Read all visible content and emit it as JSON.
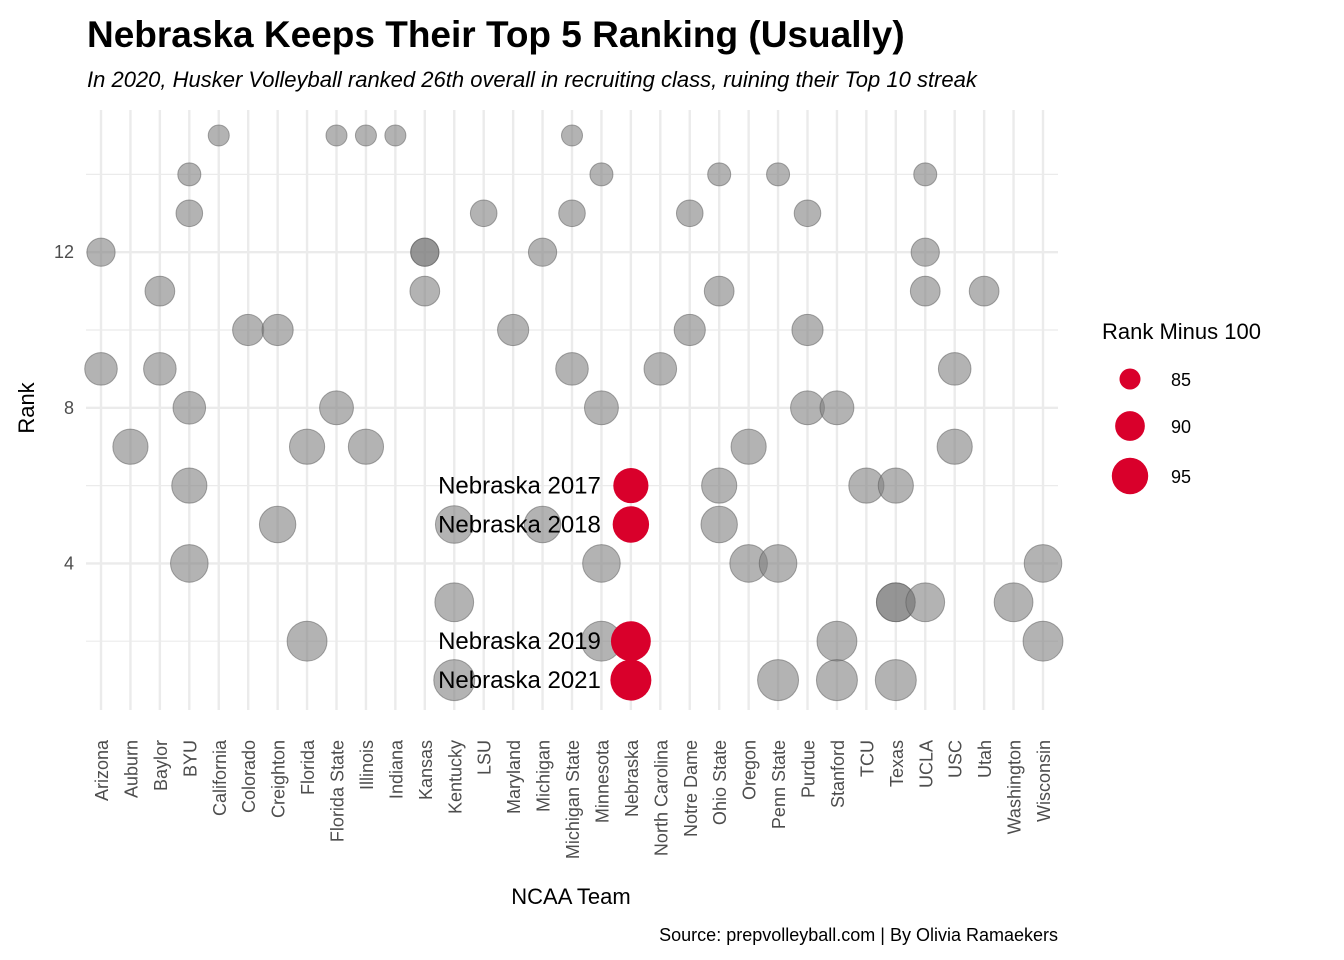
{
  "title": "Nebraska Keeps Their Top 5 Ranking (Usually)",
  "subtitle": "In 2020, Husker Volleyball ranked 26th overall in recruiting class, ruining their Top 10 streak",
  "caption": "Source: prepvolleyball.com | By Olivia Ramaekers",
  "colors": {
    "highlight": "#d9002b",
    "points": "#808080",
    "grid": "#ebebeb"
  },
  "chart_data": {
    "type": "scatter",
    "xlabel": "NCAA Team",
    "ylabel": "Rank",
    "categories": [
      "Arizona",
      "Auburn",
      "Baylor",
      "BYU",
      "California",
      "Colorado",
      "Creighton",
      "Florida",
      "Florida State",
      "Illinois",
      "Indiana",
      "Kansas",
      "Kentucky",
      "LSU",
      "Maryland",
      "Michigan",
      "Michigan State",
      "Minnesota",
      "Nebraska",
      "North Carolina",
      "Notre Dame",
      "Ohio State",
      "Oregon",
      "Penn State",
      "Purdue",
      "Stanford",
      "TCU",
      "Texas",
      "UCLA",
      "USC",
      "Utah",
      "Washington",
      "Wisconsin"
    ],
    "ylim": [
      0.4,
      15.6
    ],
    "y_ticks": [
      4,
      8,
      12
    ],
    "grid": true,
    "size_variable": "Rank Minus 100",
    "legend": {
      "title": "Rank Minus 100",
      "placement": "right",
      "sizes": [
        85,
        90,
        95
      ]
    },
    "points": [
      {
        "x": "Arizona",
        "y": 12,
        "size": 89
      },
      {
        "x": "Arizona",
        "y": 9,
        "size": 92
      },
      {
        "x": "Auburn",
        "y": 7,
        "size": 94
      },
      {
        "x": "Baylor",
        "y": 11,
        "size": 90
      },
      {
        "x": "Baylor",
        "y": 9,
        "size": 92
      },
      {
        "x": "BYU",
        "y": 14,
        "size": 86
      },
      {
        "x": "BYU",
        "y": 13,
        "size": 88
      },
      {
        "x": "BYU",
        "y": 8,
        "size": 92
      },
      {
        "x": "BYU",
        "y": 6,
        "size": 94
      },
      {
        "x": "BYU",
        "y": 4,
        "size": 96
      },
      {
        "x": "California",
        "y": 15,
        "size": 85
      },
      {
        "x": "Colorado",
        "y": 10,
        "size": 91
      },
      {
        "x": "Creighton",
        "y": 10,
        "size": 91
      },
      {
        "x": "Creighton",
        "y": 5,
        "size": 95
      },
      {
        "x": "Florida",
        "y": 7,
        "size": 94
      },
      {
        "x": "Florida",
        "y": 2,
        "size": 98
      },
      {
        "x": "Florida State",
        "y": 15,
        "size": 85
      },
      {
        "x": "Florida State",
        "y": 8,
        "size": 93
      },
      {
        "x": "Illinois",
        "y": 15,
        "size": 85
      },
      {
        "x": "Illinois",
        "y": 7,
        "size": 94
      },
      {
        "x": "Indiana",
        "y": 15,
        "size": 85
      },
      {
        "x": "Kansas",
        "y": 12,
        "size": 89
      },
      {
        "x": "Kansas",
        "y": 12,
        "size": 89
      },
      {
        "x": "Kansas",
        "y": 11,
        "size": 90
      },
      {
        "x": "Kentucky",
        "y": 5,
        "size": 96
      },
      {
        "x": "Kentucky",
        "y": 3,
        "size": 97
      },
      {
        "x": "Kentucky",
        "y": 1,
        "size": 99
      },
      {
        "x": "LSU",
        "y": 13,
        "size": 88
      },
      {
        "x": "Maryland",
        "y": 10,
        "size": 91
      },
      {
        "x": "Michigan",
        "y": 12,
        "size": 89
      },
      {
        "x": "Michigan",
        "y": 5,
        "size": 95
      },
      {
        "x": "Michigan State",
        "y": 15,
        "size": 85
      },
      {
        "x": "Michigan State",
        "y": 13,
        "size": 88
      },
      {
        "x": "Michigan State",
        "y": 9,
        "size": 92
      },
      {
        "x": "Minnesota",
        "y": 14,
        "size": 86
      },
      {
        "x": "Minnesota",
        "y": 8,
        "size": 93
      },
      {
        "x": "Minnesota",
        "y": 4,
        "size": 96
      },
      {
        "x": "Minnesota",
        "y": 2,
        "size": 98
      },
      {
        "x": "North Carolina",
        "y": 9,
        "size": 92
      },
      {
        "x": "Notre Dame",
        "y": 13,
        "size": 88
      },
      {
        "x": "Notre Dame",
        "y": 10,
        "size": 91
      },
      {
        "x": "Ohio State",
        "y": 14,
        "size": 86
      },
      {
        "x": "Ohio State",
        "y": 11,
        "size": 90
      },
      {
        "x": "Ohio State",
        "y": 6,
        "size": 94
      },
      {
        "x": "Ohio State",
        "y": 5,
        "size": 95
      },
      {
        "x": "Oregon",
        "y": 7,
        "size": 94
      },
      {
        "x": "Oregon",
        "y": 4,
        "size": 96
      },
      {
        "x": "Penn State",
        "y": 14,
        "size": 86
      },
      {
        "x": "Penn State",
        "y": 4,
        "size": 96
      },
      {
        "x": "Penn State",
        "y": 1,
        "size": 99
      },
      {
        "x": "Purdue",
        "y": 13,
        "size": 88
      },
      {
        "x": "Purdue",
        "y": 10,
        "size": 91
      },
      {
        "x": "Purdue",
        "y": 8,
        "size": 93
      },
      {
        "x": "Stanford",
        "y": 8,
        "size": 93
      },
      {
        "x": "Stanford",
        "y": 2,
        "size": 98
      },
      {
        "x": "Stanford",
        "y": 1,
        "size": 99
      },
      {
        "x": "TCU",
        "y": 6,
        "size": 94
      },
      {
        "x": "Texas",
        "y": 6,
        "size": 94
      },
      {
        "x": "Texas",
        "y": 3,
        "size": 97
      },
      {
        "x": "Texas",
        "y": 3,
        "size": 97
      },
      {
        "x": "Texas",
        "y": 1,
        "size": 99
      },
      {
        "x": "UCLA",
        "y": 14,
        "size": 86
      },
      {
        "x": "UCLA",
        "y": 12,
        "size": 89
      },
      {
        "x": "UCLA",
        "y": 11,
        "size": 90
      },
      {
        "x": "UCLA",
        "y": 3,
        "size": 97
      },
      {
        "x": "USC",
        "y": 9,
        "size": 92
      },
      {
        "x": "USC",
        "y": 7,
        "size": 94
      },
      {
        "x": "Utah",
        "y": 11,
        "size": 90
      },
      {
        "x": "Washington",
        "y": 3,
        "size": 97
      },
      {
        "x": "Wisconsin",
        "y": 4,
        "size": 96
      },
      {
        "x": "Wisconsin",
        "y": 2,
        "size": 98
      }
    ],
    "highlight_points": [
      {
        "x": "Nebraska",
        "y": 6,
        "size": 94,
        "label": "Nebraska 2017"
      },
      {
        "x": "Nebraska",
        "y": 5,
        "size": 95,
        "label": "Nebraska 2018"
      },
      {
        "x": "Nebraska",
        "y": 2,
        "size": 98,
        "label": "Nebraska 2019"
      },
      {
        "x": "Nebraska",
        "y": 1,
        "size": 99,
        "label": "Nebraska 2021"
      }
    ]
  }
}
